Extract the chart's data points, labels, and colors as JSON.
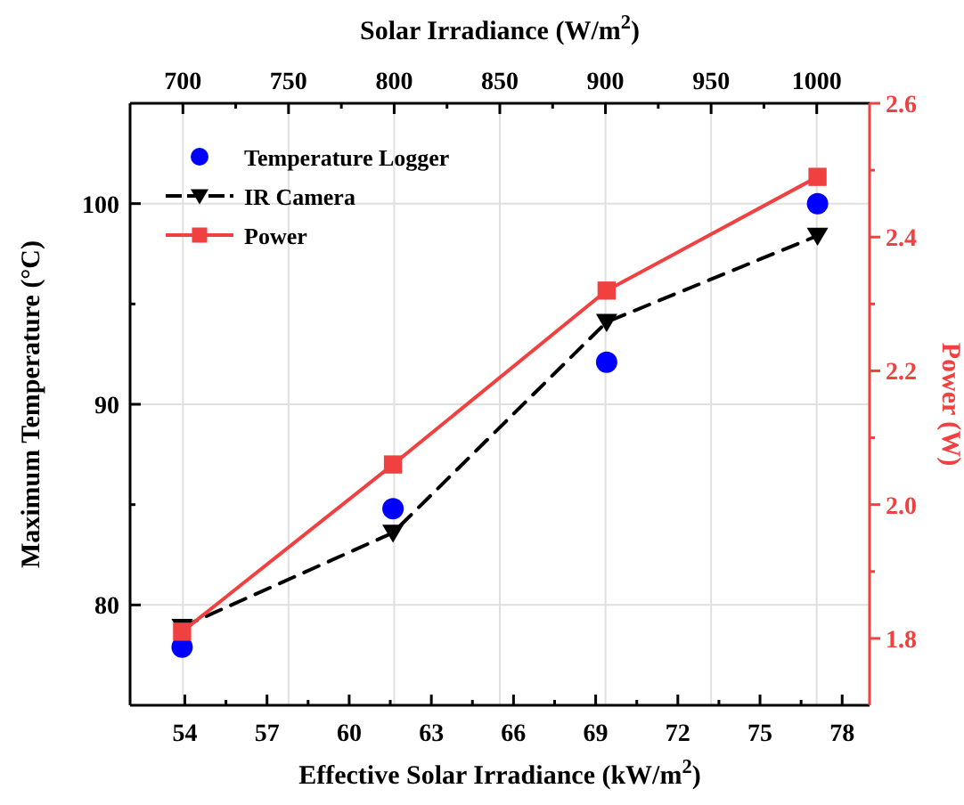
{
  "chart_data": {
    "type": "line",
    "xlabel": "Effective Solar Irradiance (kW/m$^{2}$)",
    "x2label": "Solar Irradiance (W/m$^{2}$)",
    "ylabel": "Maximum Temperature (°C)",
    "y2label": "Power (W)",
    "xlim": [
      52,
      79
    ],
    "xticks": [
      54,
      {
        "value": 55.5,
        "label": null
      },
      57,
      {
        "value": 58.5,
        "label": null
      },
      60,
      {
        "value": 61.5,
        "label": null
      },
      63,
      {
        "value": 64.5,
        "label": null
      },
      66,
      {
        "value": 67.5,
        "label": null
      },
      69,
      {
        "value": 70.5,
        "label": null
      },
      72,
      {
        "value": 73.5,
        "label": null
      },
      75,
      {
        "value": 76.5,
        "label": null
      },
      78
    ],
    "x2lim": [
      675,
      1025
    ],
    "x2ticks": [
      700,
      {
        "value": 725,
        "label": null
      },
      750,
      {
        "value": 775,
        "label": null
      },
      800,
      {
        "value": 825,
        "label": null
      },
      850,
      {
        "value": 875,
        "label": null
      },
      900,
      {
        "value": 925,
        "label": null
      },
      950,
      {
        "value": 975,
        "label": null
      },
      1000
    ],
    "ylim": [
      75,
      105
    ],
    "yticks": [
      80,
      {
        "value": 85,
        "label": null
      },
      90,
      {
        "value": 95,
        "label": null
      },
      100
    ],
    "y2lim": [
      1.7,
      2.6
    ],
    "y2ticks": [
      1.8,
      {
        "value": 1.9,
        "label": null
      },
      {
        "value": 2,
        "label": "2.0"
      },
      {
        "value": 2.1,
        "label": null
      },
      2.2,
      {
        "value": 2.3,
        "label": null
      },
      2.4,
      {
        "value": 2.5,
        "label": null
      },
      2.6
    ],
    "grid": true,
    "legend": "top left",
    "series": [
      {
        "name": "Temperature Logger",
        "type": "scatter",
        "x": [
          53.9,
          61.6,
          69.4,
          77.1
        ],
        "values": [
          77.9,
          84.8,
          92.1,
          100.0
        ],
        "color": "#0000ff",
        "marker": "circle"
      },
      {
        "name": "IR Camera",
        "x": [
          53.9,
          61.6,
          69.4,
          77.1
        ],
        "values": [
          78.9,
          83.6,
          94.1,
          98.4
        ],
        "color": "#000000",
        "marker": "triangle",
        "line_style": "dashed"
      },
      {
        "name": "Power",
        "axis": "y2",
        "x": [
          53.9,
          61.6,
          69.4,
          77.1
        ],
        "values": [
          1.81,
          2.06,
          2.32,
          2.49
        ],
        "color": "#f04040",
        "marker": "square",
        "line_style": "solid"
      }
    ]
  }
}
